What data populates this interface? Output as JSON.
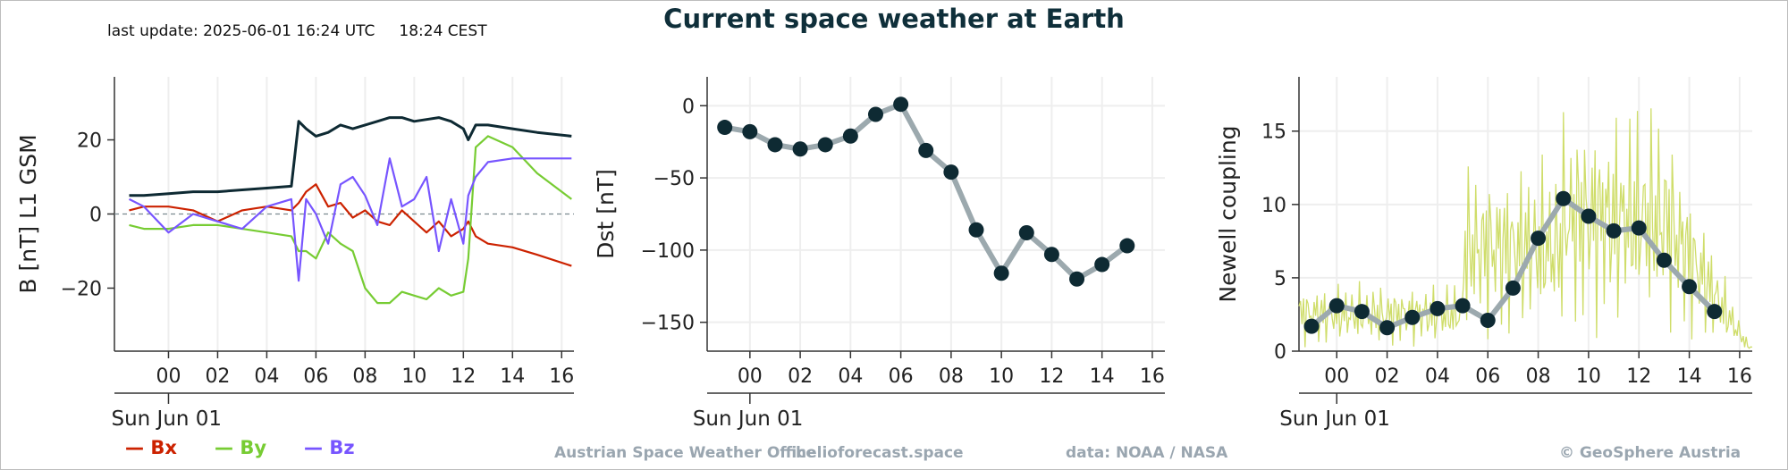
{
  "header": {
    "title": "Current space weather at Earth",
    "last_update": "last update: 2025-06-01 16:24 UTC     18:24 CEST"
  },
  "footer": {
    "office": "Austrian Space Weather Office",
    "site": "helioforecast.space",
    "source": "data: NOAA / NASA",
    "copyright": "© GeoSphere Austria"
  },
  "colors": {
    "Bx": "#cc2200",
    "By": "#77cc33",
    "Bz": "#7755ff",
    "Bt": "#0e2a33",
    "dot": "#0e2a33",
    "line": "#9ca9ae",
    "newell_raw": "#cfdd6a"
  },
  "chart_data": [
    {
      "type": "line",
      "ylabel": "B [nT] L1 GSM",
      "xlabel": "Sun Jun 01",
      "xticklabels": [
        "00",
        "02",
        "04",
        "06",
        "08",
        "10",
        "12",
        "14",
        "16"
      ],
      "ylim": [
        -37,
        37
      ],
      "yticks": [
        -20,
        0,
        20
      ],
      "legend": [
        "Bx",
        "By",
        "Bz"
      ],
      "legend_position": "bottom-left",
      "x_hours": [
        -1.6,
        -1,
        0,
        1,
        2,
        3,
        4,
        5,
        5.3,
        5.6,
        6,
        6.5,
        7,
        7.5,
        8,
        8.5,
        9,
        9.5,
        10,
        10.5,
        11,
        11.5,
        12,
        12.2,
        12.5,
        13,
        14,
        15,
        16.4
      ],
      "series": [
        {
          "name": "Bx",
          "values": [
            1,
            2,
            2,
            1,
            -2,
            1,
            2,
            1,
            3,
            6,
            8,
            2,
            3,
            -1,
            1,
            -2,
            -3,
            1,
            -2,
            -5,
            -2,
            -6,
            -4,
            -2,
            -6,
            -8,
            -9,
            -11,
            -14
          ]
        },
        {
          "name": "By",
          "values": [
            -3,
            -4,
            -4,
            -3,
            -3,
            -4,
            -5,
            -6,
            -10,
            -10,
            -12,
            -5,
            -8,
            -10,
            -20,
            -24,
            -24,
            -21,
            -22,
            -23,
            -20,
            -22,
            -21,
            -12,
            18,
            21,
            18,
            11,
            4
          ]
        },
        {
          "name": "Bz",
          "values": [
            4,
            2,
            -5,
            0,
            -2,
            -4,
            2,
            4,
            -18,
            4,
            0,
            -8,
            8,
            10,
            5,
            -3,
            15,
            2,
            4,
            10,
            -10,
            4,
            -8,
            5,
            10,
            14,
            15,
            15,
            15
          ]
        },
        {
          "name": "Bt",
          "values": [
            5,
            5,
            5.5,
            6,
            6,
            6.5,
            7,
            7.5,
            25,
            23,
            21,
            22,
            24,
            23,
            24,
            25,
            26,
            26,
            25,
            25.5,
            26,
            25,
            23,
            20,
            24,
            24,
            23,
            22,
            21
          ]
        }
      ]
    },
    {
      "type": "line",
      "ylabel": "Dst [nT]",
      "xlabel": "Sun Jun 01",
      "xticklabels": [
        "00",
        "02",
        "04",
        "06",
        "08",
        "10",
        "12",
        "14",
        "16"
      ],
      "ylim": [
        -170,
        20
      ],
      "yticks": [
        -150,
        -100,
        -50,
        0
      ],
      "x_hours": [
        -1,
        0,
        1,
        2,
        3,
        4,
        5,
        6,
        7,
        8,
        9,
        10,
        11,
        12,
        13,
        14,
        15
      ],
      "values": [
        -15,
        -18,
        -27,
        -30,
        -27,
        -21,
        -6,
        1,
        -31,
        -46,
        -86,
        -116,
        -88,
        -103,
        -120,
        -110,
        -97
      ]
    },
    {
      "type": "line",
      "ylabel": "Newell coupling",
      "xlabel": "Sun Jun 01",
      "xticklabels": [
        "00",
        "02",
        "04",
        "06",
        "08",
        "10",
        "12",
        "14",
        "16"
      ],
      "ylim": [
        0,
        18.7
      ],
      "yticks": [
        0,
        5,
        10,
        15
      ],
      "x_hours": [
        -1,
        0,
        1,
        2,
        3,
        4,
        5,
        6,
        7,
        8,
        9,
        10,
        11,
        12,
        13,
        14,
        15
      ],
      "values": [
        1.7,
        3.1,
        2.7,
        1.6,
        2.3,
        2.9,
        3.1,
        2.1,
        4.3,
        7.7,
        10.4,
        9.2,
        8.2,
        8.4,
        6.2,
        4.4,
        2.7
      ]
    }
  ]
}
